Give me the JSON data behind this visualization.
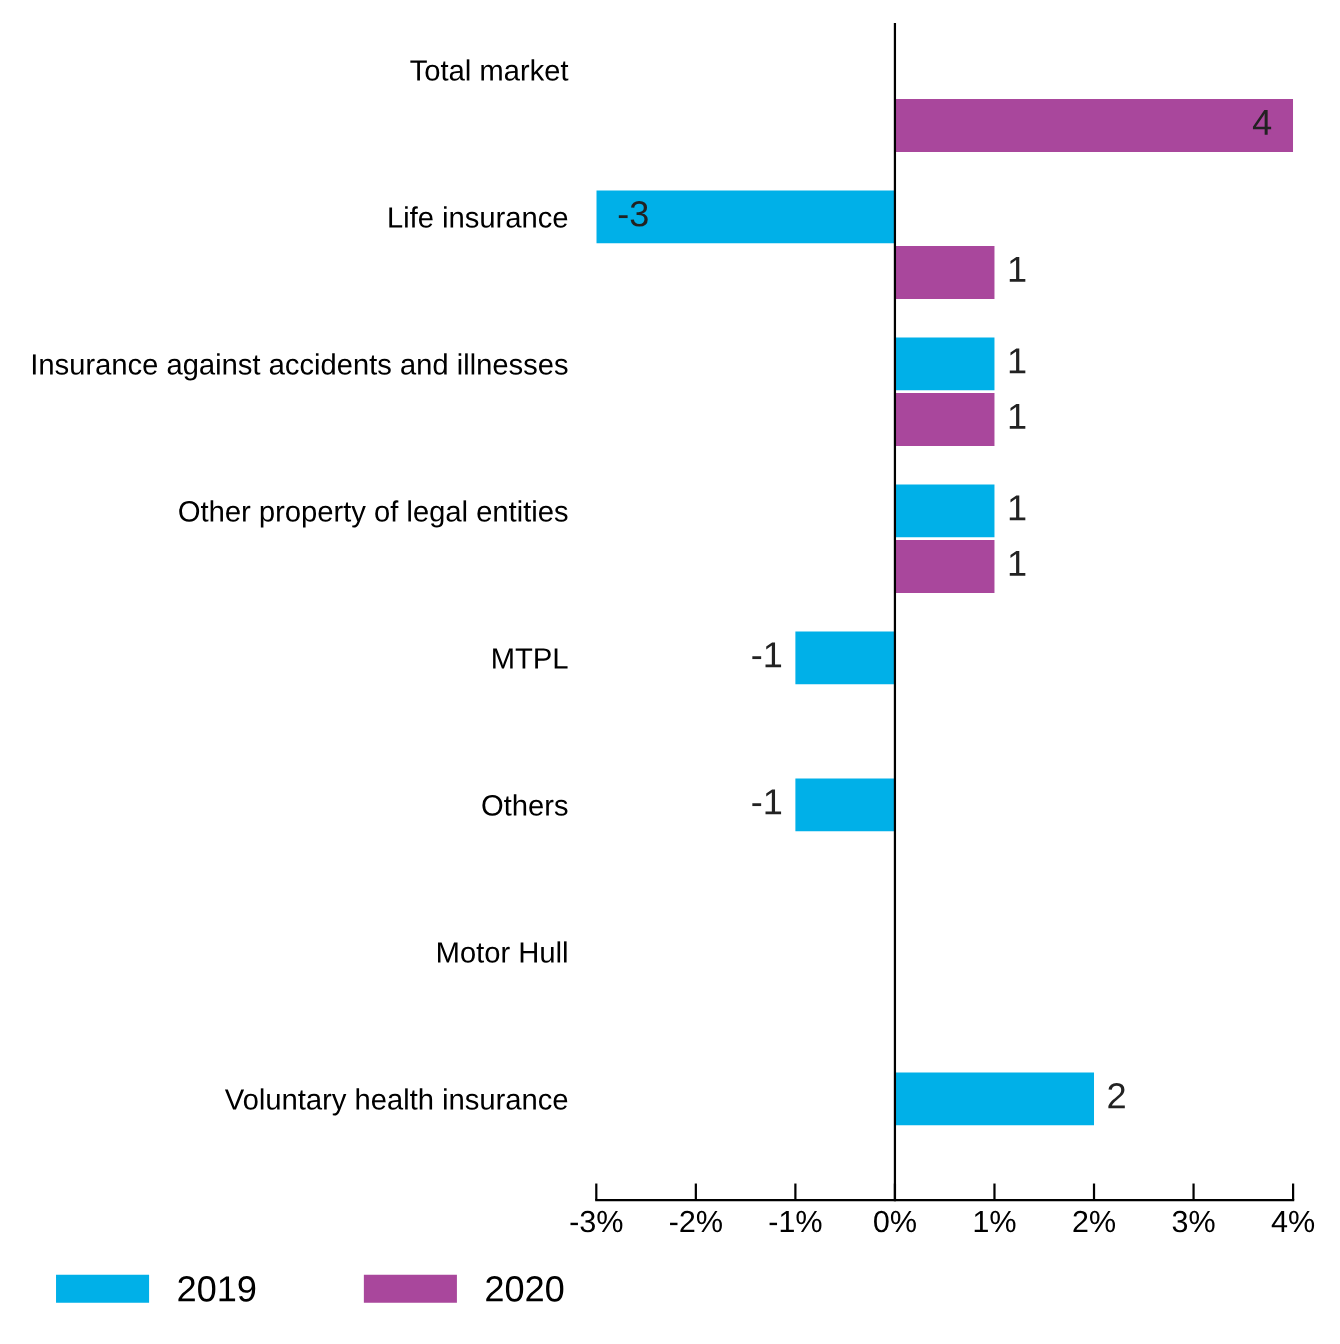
{
  "chart_data": {
    "type": "bar",
    "orientation": "horizontal",
    "categories": [
      "Total market",
      "Life insurance",
      "Insurance against accidents and illnesses",
      "Other property of legal entities",
      "MTPL",
      "Others",
      "Motor Hull",
      "Voluntary health insurance"
    ],
    "series": [
      {
        "name": "2019",
        "color": "#00b0e8",
        "values": [
          null,
          -3,
          1,
          1,
          -1,
          -1,
          null,
          2
        ]
      },
      {
        "name": "2020",
        "color": "#a9479c",
        "values": [
          4,
          1,
          1,
          1,
          null,
          null,
          null,
          null
        ]
      }
    ],
    "xlim": [
      -3,
      4
    ],
    "xticks": [
      {
        "value": -3,
        "label": "-3%"
      },
      {
        "value": -2,
        "label": "-2%"
      },
      {
        "value": -1,
        "label": "-1%"
      },
      {
        "value": 0,
        "label": "0%"
      },
      {
        "value": 1,
        "label": "1%"
      },
      {
        "value": 2,
        "label": "2%"
      },
      {
        "value": 3,
        "label": "3%"
      },
      {
        "value": 4,
        "label": "4%"
      }
    ],
    "data_labels": true,
    "legend": "bottom"
  }
}
